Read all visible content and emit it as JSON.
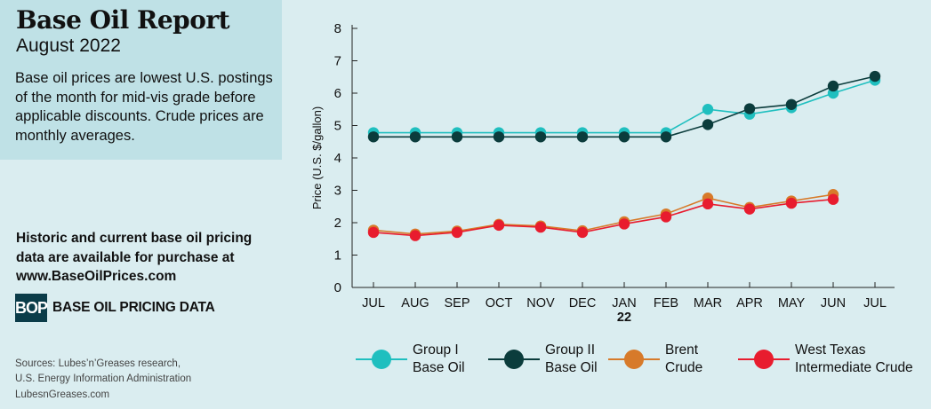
{
  "header": {
    "title": "Base Oil Report",
    "subtitle": "August 2022",
    "description": "Base oil prices are lowest U.S. postings of the month for mid-vis grade before applicable discounts. Crude prices are monthly averages."
  },
  "promo": {
    "line1": "Historic and current base oil pricing",
    "line2": "data are available for purchase at",
    "url": "www.BaseOilPrices.com"
  },
  "logo": {
    "mark": "BOP",
    "text": "BASE OIL PRICING DATA"
  },
  "sources": {
    "line1": "Sources: Lubes’n’Greases research,",
    "line2": "U.S. Energy Information Administration",
    "site": "LubesnGreases.com"
  },
  "legend": [
    {
      "line1": "Group I",
      "line2": "Base Oil",
      "color": "#1fbfbf"
    },
    {
      "line1": "Group II",
      "line2": "Base Oil",
      "color": "#0b3c3c"
    },
    {
      "line1": "Brent",
      "line2": "Crude",
      "color": "#d77a2a"
    },
    {
      "line1": "West Texas",
      "line2": "Intermediate Crude",
      "color": "#e81c2e"
    }
  ],
  "chart_data": {
    "type": "line",
    "categories": [
      "JUL",
      "AUG",
      "SEP",
      "OCT",
      "NOV",
      "DEC",
      "JAN",
      "FEB",
      "MAR",
      "APR",
      "MAY",
      "JUN",
      "JUL"
    ],
    "category_sublabels": {
      "JAN": "22"
    },
    "ylabel": "Price (U.S. $/gallon)",
    "xlabel": "",
    "ylim": [
      0,
      8
    ],
    "yticks": [
      0,
      1,
      2,
      3,
      4,
      5,
      6,
      7,
      8
    ],
    "grid": false,
    "legend_position": "bottom",
    "series": [
      {
        "name": "Group I Base Oil",
        "color": "#1fbfbf",
        "values": [
          4.78,
          4.78,
          4.78,
          4.78,
          4.78,
          4.78,
          4.78,
          4.78,
          5.5,
          5.35,
          5.55,
          6.0,
          6.4
        ]
      },
      {
        "name": "Group II Base Oil",
        "color": "#0b3c3c",
        "values": [
          4.65,
          4.65,
          4.65,
          4.65,
          4.65,
          4.65,
          4.65,
          4.65,
          5.03,
          5.52,
          5.65,
          6.22,
          6.52
        ]
      },
      {
        "name": "Brent Crude",
        "color": "#d77a2a",
        "values": [
          1.77,
          1.65,
          1.74,
          1.95,
          1.9,
          1.75,
          2.03,
          2.27,
          2.76,
          2.47,
          2.67,
          2.87,
          null
        ]
      },
      {
        "name": "West Texas Intermediate Crude",
        "color": "#e81c2e",
        "values": [
          1.7,
          1.6,
          1.7,
          1.92,
          1.86,
          1.7,
          1.96,
          2.18,
          2.58,
          2.42,
          2.6,
          2.72,
          null
        ]
      }
    ]
  }
}
